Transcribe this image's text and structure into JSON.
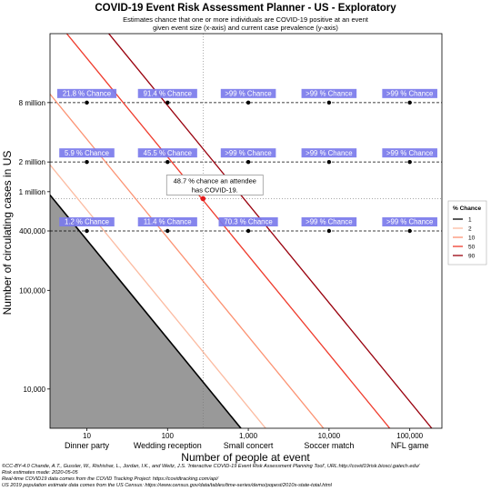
{
  "chart_data": {
    "type": "line",
    "title": "COVID-19 Event Risk Assessment Planner - US - Exploratory",
    "subtitle": [
      "Estimates chance that one or more individuals are COVID-19 positive at an event",
      "given event size (x-axis) and current case prevalence (y-axis)"
    ],
    "xlabel": "Number of people at event",
    "ylabel": "Number of circulating cases in US",
    "xscale": "log",
    "yscale": "log",
    "xlim": [
      3.5,
      250000
    ],
    "ylim": [
      4000,
      40000000
    ],
    "x_ticks": [
      {
        "value": 10,
        "label": "10"
      },
      {
        "value": 100,
        "label": "100"
      },
      {
        "value": 1000,
        "label": "1,000"
      },
      {
        "value": 10000,
        "label": "10,000"
      },
      {
        "value": 100000,
        "label": "100,000"
      }
    ],
    "x_categories": [
      {
        "value": 10,
        "label": "Dinner party"
      },
      {
        "value": 100,
        "label": "Wedding reception"
      },
      {
        "value": 1000,
        "label": "Small concert"
      },
      {
        "value": 10000,
        "label": "Soccer match"
      },
      {
        "value": 100000,
        "label": "NFL game"
      }
    ],
    "y_ticks": [
      {
        "value": 10000,
        "label": "10,000"
      },
      {
        "value": 100000,
        "label": "100,000"
      },
      {
        "value": 400000,
        "label": "400,000"
      },
      {
        "value": 1000000,
        "label": "1 million"
      },
      {
        "value": 2000000,
        "label": "2 million"
      },
      {
        "value": 8000000,
        "label": "8 million"
      }
    ],
    "legend": {
      "title": "% Chance",
      "position": "right",
      "entries": [
        {
          "name": "1",
          "color": "#000000"
        },
        {
          "name": "2",
          "color": "#fcbba1"
        },
        {
          "name": "10",
          "color": "#fc9272"
        },
        {
          "name": "50",
          "color": "#ef3b2c"
        },
        {
          "name": "90",
          "color": "#99000d"
        }
      ]
    },
    "series": [
      {
        "name": "1",
        "color": "#000000",
        "x": [
          3.5,
          1000
        ],
        "y": [
          926000,
          3240
        ]
      },
      {
        "name": "2",
        "color": "#fcbba1",
        "x": [
          3.5,
          1830
        ],
        "y": [
          1870000,
          3580
        ]
      },
      {
        "name": "10",
        "color": "#fc9272",
        "x": [
          3.5,
          9000
        ],
        "y": [
          9750000,
          3790
        ]
      },
      {
        "name": "50",
        "color": "#ef3b2c",
        "x": [
          3.5,
          60000
        ],
        "y": [
          64500000,
          3760
        ]
      },
      {
        "name": "90",
        "color": "#99000d",
        "x": [
          3.5,
          200000
        ],
        "y": [
          214000000,
          3740
        ]
      }
    ],
    "shaded_region": {
      "color": "#999999",
      "below": "1"
    },
    "reference_lines": {
      "horizontal": [
        400000,
        2000000,
        8000000
      ],
      "vertical": [
        275
      ],
      "dotted_horizontal": [
        850000
      ]
    },
    "annotated_points": [
      {
        "x": 10,
        "y": 8000000,
        "label": "21.8 % Chance"
      },
      {
        "x": 100,
        "y": 8000000,
        "label": "91.4 % Chance"
      },
      {
        "x": 1000,
        "y": 8000000,
        "label": ">99 % Chance"
      },
      {
        "x": 10000,
        "y": 8000000,
        "label": ">99 % Chance"
      },
      {
        "x": 100000,
        "y": 8000000,
        "label": ">99 % Chance"
      },
      {
        "x": 10,
        "y": 2000000,
        "label": "5.9 % Chance"
      },
      {
        "x": 100,
        "y": 2000000,
        "label": "45.5 % Chance"
      },
      {
        "x": 1000,
        "y": 2000000,
        "label": ">99 % Chance"
      },
      {
        "x": 10000,
        "y": 2000000,
        "label": ">99 % Chance"
      },
      {
        "x": 100000,
        "y": 2000000,
        "label": ">99 % Chance"
      },
      {
        "x": 10,
        "y": 400000,
        "label": "1.2 % Chance"
      },
      {
        "x": 100,
        "y": 400000,
        "label": "11.4 % Chance"
      },
      {
        "x": 1000,
        "y": 400000,
        "label": "70.3 % Chance"
      },
      {
        "x": 10000,
        "y": 400000,
        "label": ">99 % Chance"
      },
      {
        "x": 100000,
        "y": 400000,
        "label": ">99 % Chance"
      }
    ],
    "highlight": {
      "x": 275,
      "y": 850000,
      "color": "#e41a1c",
      "label_lines": [
        "48.7 % chance an attendee",
        "has COVID-19."
      ]
    },
    "label_box_color": "#7b7bec",
    "grid": false
  },
  "footer": [
    "©CC-BY-4.0  Chande, A.T., Gussler, W., Rishishar, L., Jordan, I.K., and Weitz, J.S. 'Interactive COVID-19 Event Risk Assessment Planning Tool', URL:http://covid19risk.biosci.gatech.edu/",
    "Risk estimates made:  2020-05-05",
    "Real-time COVID19 data comes from the COVID Tracking Project: https://covidtracking.com/api/",
    "US 2019 population estimate data comes from the US Census: https://www.census.gov/data/tables/time-series/demo/popest/2010s-state-total.html"
  ]
}
